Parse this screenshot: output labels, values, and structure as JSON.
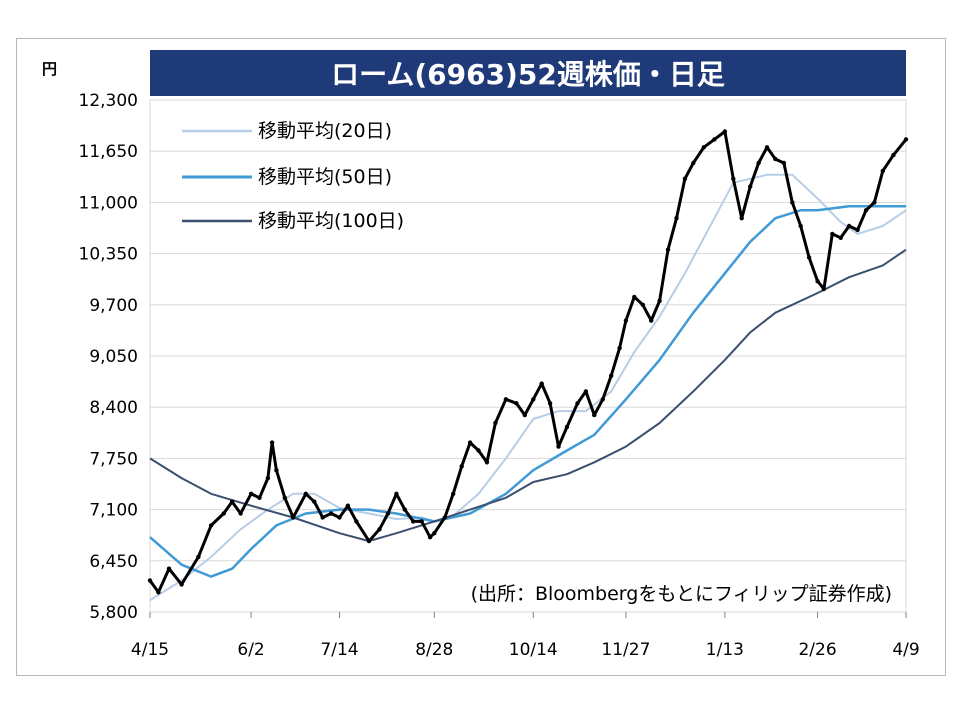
{
  "chart_data": {
    "type": "line",
    "title": "ローム(6963)52週株価・日足",
    "unit": "円",
    "source": "(出所：Bloombergをもとにフィリップ証券作成)",
    "x_ticks": [
      "4/15",
      "6/2",
      "7/14",
      "8/28",
      "10/14",
      "11/27",
      "1/13",
      "2/26",
      "4/9"
    ],
    "y_ticks": [
      5800,
      6450,
      7100,
      7750,
      8400,
      9050,
      9700,
      10350,
      11000,
      11650,
      12300
    ],
    "y_tick_labels": [
      "5,800",
      "6,450",
      "7,100",
      "7,750",
      "8,400",
      "9,050",
      "9,700",
      "10,350",
      "11,000",
      "11,650",
      "12,300"
    ],
    "ylim": [
      5800,
      12300
    ],
    "grid": true,
    "legend_position": "top-left",
    "colors": {
      "title_bg": "#1f3a78",
      "price": "#000000",
      "ma20": "#b7cde6",
      "ma50": "#3f9ad6",
      "ma100": "#3c4f6e",
      "grid": "#d9d9d9"
    },
    "price": [
      [
        "4/15",
        6200
      ],
      [
        "4/19",
        6050
      ],
      [
        "4/24",
        6350
      ],
      [
        "4/30",
        6150
      ],
      [
        "5/8",
        6500
      ],
      [
        "5/14",
        6900
      ],
      [
        "5/20",
        7050
      ],
      [
        "5/24",
        7200
      ],
      [
        "5/28",
        7050
      ],
      [
        "6/2",
        7300
      ],
      [
        "6/6",
        7250
      ],
      [
        "6/10",
        7500
      ],
      [
        "6/12",
        7950
      ],
      [
        "6/14",
        7600
      ],
      [
        "6/18",
        7250
      ],
      [
        "6/22",
        7000
      ],
      [
        "6/28",
        7300
      ],
      [
        "7/2",
        7200
      ],
      [
        "7/6",
        7000
      ],
      [
        "7/10",
        7050
      ],
      [
        "7/14",
        7000
      ],
      [
        "7/18",
        7150
      ],
      [
        "7/22",
        6950
      ],
      [
        "7/28",
        6700
      ],
      [
        "8/2",
        6850
      ],
      [
        "8/6",
        7050
      ],
      [
        "8/10",
        7300
      ],
      [
        "8/14",
        7100
      ],
      [
        "8/18",
        6950
      ],
      [
        "8/22",
        6950
      ],
      [
        "8/26",
        6750
      ],
      [
        "8/28",
        6800
      ],
      [
        "9/2",
        7000
      ],
      [
        "9/6",
        7300
      ],
      [
        "9/10",
        7650
      ],
      [
        "9/14",
        7950
      ],
      [
        "9/18",
        7850
      ],
      [
        "9/22",
        7700
      ],
      [
        "9/26",
        8200
      ],
      [
        "10/1",
        8500
      ],
      [
        "10/6",
        8450
      ],
      [
        "10/10",
        8300
      ],
      [
        "10/14",
        8500
      ],
      [
        "10/18",
        8700
      ],
      [
        "10/22",
        8450
      ],
      [
        "10/26",
        7900
      ],
      [
        "10/30",
        8150
      ],
      [
        "11/4",
        8450
      ],
      [
        "11/8",
        8600
      ],
      [
        "11/12",
        8300
      ],
      [
        "11/16",
        8500
      ],
      [
        "11/20",
        8800
      ],
      [
        "11/24",
        9150
      ],
      [
        "11/27",
        9500
      ],
      [
        "12/1",
        9800
      ],
      [
        "12/5",
        9700
      ],
      [
        "12/9",
        9500
      ],
      [
        "12/13",
        9750
      ],
      [
        "12/17",
        10400
      ],
      [
        "12/21",
        10800
      ],
      [
        "12/25",
        11300
      ],
      [
        "12/29",
        11500
      ],
      [
        "1/3",
        11700
      ],
      [
        "1/8",
        11800
      ],
      [
        "1/13",
        11900
      ],
      [
        "1/17",
        11300
      ],
      [
        "1/21",
        10800
      ],
      [
        "1/25",
        11200
      ],
      [
        "1/29",
        11500
      ],
      [
        "2/2",
        11700
      ],
      [
        "2/6",
        11550
      ],
      [
        "2/10",
        11500
      ],
      [
        "2/14",
        11000
      ],
      [
        "2/18",
        10700
      ],
      [
        "2/22",
        10300
      ],
      [
        "2/26",
        10000
      ],
      [
        "3/1",
        9900
      ],
      [
        "3/5",
        10600
      ],
      [
        "3/9",
        10550
      ],
      [
        "3/13",
        10700
      ],
      [
        "3/17",
        10650
      ],
      [
        "3/21",
        10900
      ],
      [
        "3/25",
        11000
      ],
      [
        "3/29",
        11400
      ],
      [
        "4/3",
        11600
      ],
      [
        "4/9",
        11800
      ]
    ],
    "series": [
      {
        "name": "移動平均(20日)",
        "values": [
          [
            "4/15",
            5950
          ],
          [
            "4/30",
            6200
          ],
          [
            "5/14",
            6500
          ],
          [
            "5/28",
            6850
          ],
          [
            "6/10",
            7100
          ],
          [
            "6/22",
            7300
          ],
          [
            "7/2",
            7300
          ],
          [
            "7/14",
            7120
          ],
          [
            "7/28",
            7050
          ],
          [
            "8/10",
            6980
          ],
          [
            "8/22",
            7000
          ],
          [
            "8/28",
            6950
          ],
          [
            "9/6",
            7020
          ],
          [
            "9/18",
            7300
          ],
          [
            "10/1",
            7750
          ],
          [
            "10/14",
            8250
          ],
          [
            "10/26",
            8350
          ],
          [
            "11/8",
            8350
          ],
          [
            "11/20",
            8600
          ],
          [
            "12/1",
            9100
          ],
          [
            "12/13",
            9550
          ],
          [
            "12/25",
            10100
          ],
          [
            "1/8",
            10800
          ],
          [
            "1/17",
            11250
          ],
          [
            "1/25",
            11300
          ],
          [
            "2/2",
            11350
          ],
          [
            "2/14",
            11350
          ],
          [
            "2/26",
            11050
          ],
          [
            "3/9",
            10750
          ],
          [
            "3/17",
            10600
          ],
          [
            "3/29",
            10700
          ],
          [
            "4/9",
            10900
          ]
        ]
      },
      {
        "name": "移動平均(50日)",
        "values": [
          [
            "4/15",
            6750
          ],
          [
            "4/30",
            6400
          ],
          [
            "5/14",
            6250
          ],
          [
            "5/24",
            6350
          ],
          [
            "6/2",
            6600
          ],
          [
            "6/14",
            6900
          ],
          [
            "6/28",
            7050
          ],
          [
            "7/14",
            7100
          ],
          [
            "7/28",
            7100
          ],
          [
            "8/10",
            7050
          ],
          [
            "8/28",
            6950
          ],
          [
            "9/14",
            7050
          ],
          [
            "10/1",
            7300
          ],
          [
            "10/14",
            7600
          ],
          [
            "10/30",
            7850
          ],
          [
            "11/12",
            8050
          ],
          [
            "11/27",
            8500
          ],
          [
            "12/13",
            9000
          ],
          [
            "12/29",
            9600
          ],
          [
            "1/13",
            10100
          ],
          [
            "1/25",
            10500
          ],
          [
            "2/6",
            10800
          ],
          [
            "2/18",
            10900
          ],
          [
            "2/26",
            10900
          ],
          [
            "3/13",
            10950
          ],
          [
            "3/29",
            10950
          ],
          [
            "4/9",
            10950
          ]
        ]
      },
      {
        "name": "移動平均(100日)",
        "values": [
          [
            "4/15",
            7750
          ],
          [
            "4/30",
            7500
          ],
          [
            "5/14",
            7300
          ],
          [
            "6/2",
            7150
          ],
          [
            "6/22",
            7000
          ],
          [
            "7/14",
            6800
          ],
          [
            "7/28",
            6700
          ],
          [
            "8/10",
            6800
          ],
          [
            "8/28",
            6950
          ],
          [
            "9/14",
            7100
          ],
          [
            "10/1",
            7250
          ],
          [
            "10/14",
            7450
          ],
          [
            "10/30",
            7550
          ],
          [
            "11/12",
            7700
          ],
          [
            "11/27",
            7900
          ],
          [
            "12/13",
            8200
          ],
          [
            "12/29",
            8600
          ],
          [
            "1/13",
            9000
          ],
          [
            "1/25",
            9350
          ],
          [
            "2/6",
            9600
          ],
          [
            "2/26",
            9850
          ],
          [
            "3/13",
            10050
          ],
          [
            "3/29",
            10200
          ],
          [
            "4/9",
            10400
          ]
        ]
      }
    ]
  }
}
